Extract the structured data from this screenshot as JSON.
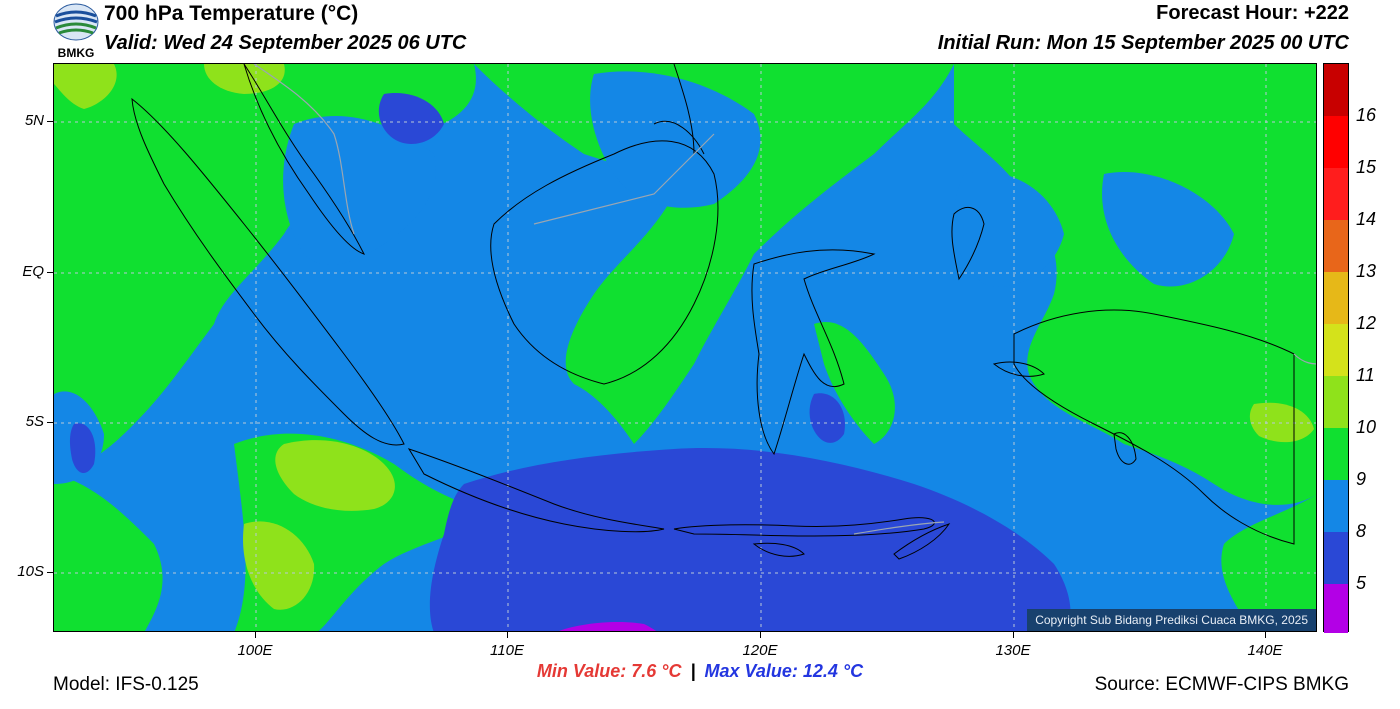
{
  "header": {
    "title": "700 hPa Temperature (°C)",
    "valid": "Valid: Wed 24 September 2025 06 UTC",
    "forecast_hour": "Forecast Hour: +222",
    "initial_run": "Initial Run: Mon 15 September 2025 00 UTC",
    "logo_text": "BMKG"
  },
  "axes": {
    "lat_labels": [
      "5N",
      "EQ",
      "5S",
      "10S"
    ],
    "lon_labels": [
      "100E",
      "110E",
      "120E",
      "130E",
      "140E"
    ]
  },
  "legend": {
    "labels": [
      "16",
      "15",
      "14",
      "13",
      "12",
      "11",
      "10",
      "9",
      "8",
      "5"
    ],
    "colors": [
      "#c80000",
      "#ff0000",
      "#ff1d1d",
      "#e8661a",
      "#e6b818",
      "#d4e21b",
      "#8fe21b",
      "#10e030",
      "#1487e6",
      "#2a48d6",
      "#b300e6",
      "#a0004a"
    ]
  },
  "stats": {
    "min_value": "Min Value: 7.6 °C",
    "separator": "|",
    "max_value": "Max Value: 12.4 °C"
  },
  "footer": {
    "model": "Model: IFS-0.125",
    "source": "Source: ECMWF-CIPS BMKG",
    "copyright": "Copyright Sub Bidang Prediksi Cuaca BMKG, 2025"
  },
  "map_colors": {
    "band_9": "#2a48d6",
    "band_10": "#1487e6",
    "band_11": "#10e030",
    "band_12": "#8fe21b",
    "band_13": "#d4e21b",
    "band_8": "#b300e6"
  }
}
